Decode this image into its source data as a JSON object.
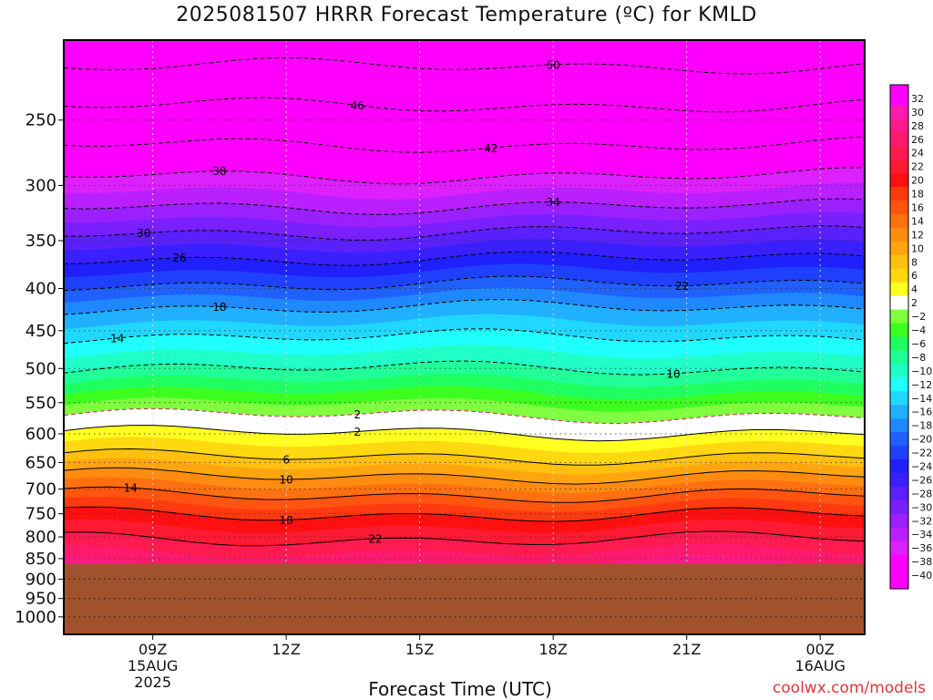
{
  "chart_data": {
    "type": "heatmap",
    "title": "2025081507 HRRR Forecast Temperature (ºC) for KMLD",
    "xlabel": "Forecast Time (UTC)",
    "ylabel": "",
    "credit": "coolwx.com/models",
    "x_ticks": [
      {
        "hour": 9,
        "lines": [
          "09Z",
          "15AUG",
          "2025"
        ]
      },
      {
        "hour": 12,
        "lines": [
          "12Z"
        ]
      },
      {
        "hour": 15,
        "lines": [
          "15Z"
        ]
      },
      {
        "hour": 18,
        "lines": [
          "18Z"
        ]
      },
      {
        "hour": 21,
        "lines": [
          "21Z"
        ]
      },
      {
        "hour": 24,
        "lines": [
          "00Z",
          "16AUG"
        ]
      }
    ],
    "x_range_hours": [
      7,
      25
    ],
    "y_range_hPa": [
      200,
      1050
    ],
    "y_scale": "log",
    "y_ticks": [
      250,
      300,
      350,
      400,
      450,
      500,
      550,
      600,
      650,
      700,
      750,
      800,
      850,
      900,
      950,
      1000
    ],
    "ground_pressure_hPa": 862,
    "grid": "dotted",
    "colorbar": {
      "position": "right",
      "levels": [
        32,
        30,
        28,
        26,
        24,
        22,
        20,
        18,
        16,
        14,
        12,
        10,
        8,
        6,
        4,
        2,
        -2,
        -4,
        -6,
        -8,
        -10,
        -12,
        -14,
        -16,
        -18,
        -20,
        -22,
        -24,
        -26,
        -28,
        -30,
        -32,
        -34,
        -36,
        -38,
        -40
      ],
      "colors": [
        "#ff00ff",
        "#ff1ab4",
        "#ff1a8c",
        "#ff1a6e",
        "#ff1a50",
        "#ff1a33",
        "#ff1010",
        "#ff3a10",
        "#ff5510",
        "#ff7010",
        "#ff8c10",
        "#ffa510",
        "#ffc010",
        "#ffd810",
        "#ffff20",
        "#ffffff",
        "#80ff40",
        "#3cff20",
        "#20ff60",
        "#20ff98",
        "#20ffc8",
        "#20ffff",
        "#20d8ff",
        "#20b0ff",
        "#2088ff",
        "#2060ff",
        "#2040ff",
        "#2020ff",
        "#3a20ff",
        "#5a20ff",
        "#7a20ff",
        "#9a20ff",
        "#ba20ff",
        "#dc20ff",
        "#ff00ff"
      ]
    },
    "contours": [
      {
        "value": -50,
        "pressure_hPa": 215,
        "label": "50",
        "style": "dashed"
      },
      {
        "value": -46,
        "pressure_hPa": 240,
        "label": "46",
        "style": "dashed"
      },
      {
        "value": -42,
        "pressure_hPa": 268,
        "label": "42",
        "style": "dashed"
      },
      {
        "value": -38,
        "pressure_hPa": 292,
        "label": "38",
        "style": "dashed"
      },
      {
        "value": -34,
        "pressure_hPa": 318,
        "label": "34",
        "style": "dashed"
      },
      {
        "value": -30,
        "pressure_hPa": 342,
        "label": "30",
        "style": "dashed"
      },
      {
        "value": -26,
        "pressure_hPa": 368,
        "label": "26",
        "style": "dashed"
      },
      {
        "value": -22,
        "pressure_hPa": 395,
        "label": "22",
        "style": "dashed"
      },
      {
        "value": -18,
        "pressure_hPa": 422,
        "label": "18",
        "style": "dashed"
      },
      {
        "value": -14,
        "pressure_hPa": 458,
        "label": "14",
        "style": "dashed"
      },
      {
        "value": -10,
        "pressure_hPa": 500,
        "label": "10",
        "style": "dashed"
      },
      {
        "value": -2,
        "pressure_hPa": 570,
        "label": "2",
        "style": "dashed"
      },
      {
        "value": 2,
        "pressure_hPa": 598,
        "label": "2",
        "style": "solid"
      },
      {
        "value": 6,
        "pressure_hPa": 640,
        "label": "6",
        "style": "solid"
      },
      {
        "value": 10,
        "pressure_hPa": 675,
        "label": "10",
        "style": "solid"
      },
      {
        "value": 14,
        "pressure_hPa": 712,
        "label": "14",
        "style": "solid"
      },
      {
        "value": 18,
        "pressure_hPa": 752,
        "label": "18",
        "style": "solid"
      },
      {
        "value": 22,
        "pressure_hPa": 805,
        "label": "22",
        "style": "solid"
      }
    ]
  }
}
